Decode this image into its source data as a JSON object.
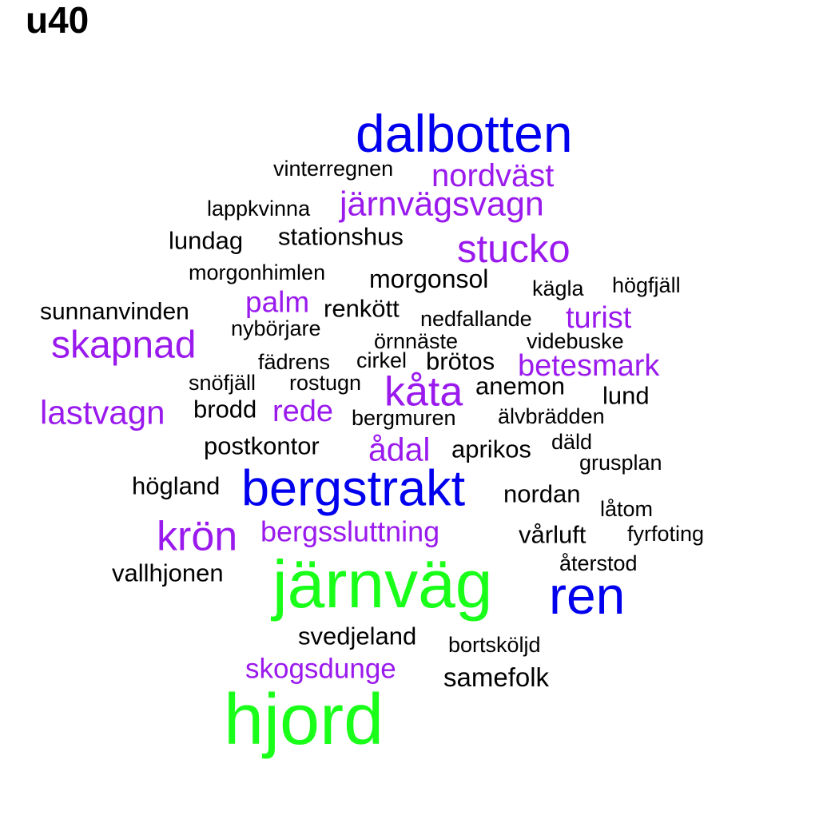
{
  "title": "u40",
  "colors": {
    "green": "#1aff1a",
    "blue": "#0000ee",
    "purple": "#9a1aee",
    "black": "#000000"
  },
  "words": [
    {
      "text": "dalbotten",
      "tier": "blue"
    },
    {
      "text": "vinterregnen",
      "tier": "black"
    },
    {
      "text": "nordväst",
      "tier": "purple"
    },
    {
      "text": "lappkvinna",
      "tier": "black"
    },
    {
      "text": "järnvägsvagn",
      "tier": "purple"
    },
    {
      "text": "lundag",
      "tier": "black"
    },
    {
      "text": "stationshus",
      "tier": "black"
    },
    {
      "text": "stucko",
      "tier": "purple"
    },
    {
      "text": "morgonhimlen",
      "tier": "black"
    },
    {
      "text": "morgonsol",
      "tier": "black"
    },
    {
      "text": "kägla",
      "tier": "black"
    },
    {
      "text": "högfjäll",
      "tier": "black"
    },
    {
      "text": "sunnanvinden",
      "tier": "black"
    },
    {
      "text": "palm",
      "tier": "purple"
    },
    {
      "text": "renkött",
      "tier": "black"
    },
    {
      "text": "nedfallande",
      "tier": "black"
    },
    {
      "text": "turist",
      "tier": "purple"
    },
    {
      "text": "skapnad",
      "tier": "purple"
    },
    {
      "text": "nybörjare",
      "tier": "black"
    },
    {
      "text": "örnnäste",
      "tier": "black"
    },
    {
      "text": "videbuske",
      "tier": "black"
    },
    {
      "text": "fädrens",
      "tier": "black"
    },
    {
      "text": "cirkel",
      "tier": "black"
    },
    {
      "text": "brötos",
      "tier": "black"
    },
    {
      "text": "betesmark",
      "tier": "purple"
    },
    {
      "text": "snöfjäll",
      "tier": "black"
    },
    {
      "text": "rostugn",
      "tier": "black"
    },
    {
      "text": "kåta",
      "tier": "purple"
    },
    {
      "text": "anemon",
      "tier": "black"
    },
    {
      "text": "lund",
      "tier": "black"
    },
    {
      "text": "lastvagn",
      "tier": "purple"
    },
    {
      "text": "brodd",
      "tier": "black"
    },
    {
      "text": "rede",
      "tier": "purple"
    },
    {
      "text": "bergmuren",
      "tier": "black"
    },
    {
      "text": "älvbrädden",
      "tier": "black"
    },
    {
      "text": "postkontor",
      "tier": "black"
    },
    {
      "text": "ådal",
      "tier": "purple"
    },
    {
      "text": "aprikos",
      "tier": "black"
    },
    {
      "text": "däld",
      "tier": "black"
    },
    {
      "text": "grusplan",
      "tier": "black"
    },
    {
      "text": "högland",
      "tier": "black"
    },
    {
      "text": "bergstrakt",
      "tier": "blue"
    },
    {
      "text": "nordan",
      "tier": "black"
    },
    {
      "text": "låtom",
      "tier": "black"
    },
    {
      "text": "krön",
      "tier": "purple"
    },
    {
      "text": "bergssluttning",
      "tier": "purple"
    },
    {
      "text": "vårluft",
      "tier": "black"
    },
    {
      "text": "fyrfoting",
      "tier": "black"
    },
    {
      "text": "vallhjonen",
      "tier": "black"
    },
    {
      "text": "järnväg",
      "tier": "green"
    },
    {
      "text": "återstod",
      "tier": "black"
    },
    {
      "text": "ren",
      "tier": "blue"
    },
    {
      "text": "svedjeland",
      "tier": "black"
    },
    {
      "text": "bortsköljd",
      "tier": "black"
    },
    {
      "text": "skogsdunge",
      "tier": "purple"
    },
    {
      "text": "samefolk",
      "tier": "black"
    },
    {
      "text": "hjord",
      "tier": "green"
    }
  ]
}
